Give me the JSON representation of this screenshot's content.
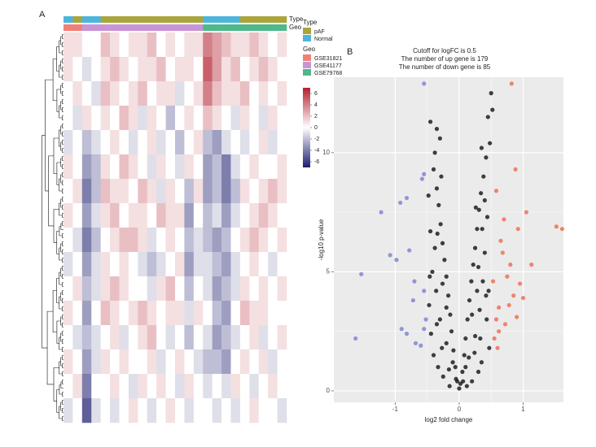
{
  "chart_data": [
    {
      "type": "heatmap",
      "label": "A",
      "annotations": [
        {
          "name": "Type",
          "levels": [
            {
              "name": "pAF",
              "color": "#a9a53b"
            },
            {
              "name": "Normal",
              "color": "#4db5dc"
            }
          ],
          "values": [
            1,
            0,
            1,
            1,
            0,
            0,
            0,
            0,
            0,
            0,
            0,
            0,
            0,
            0,
            0,
            1,
            1,
            1,
            1,
            0,
            0,
            0,
            0,
            0
          ]
        },
        {
          "name": "Geo",
          "levels": [
            {
              "name": "GSE31821",
              "color": "#f08077"
            },
            {
              "name": "GSE41177",
              "color": "#c895d6"
            },
            {
              "name": "GSE79768",
              "color": "#4fb88a"
            }
          ],
          "values": [
            0,
            0,
            1,
            1,
            1,
            1,
            1,
            1,
            1,
            1,
            1,
            1,
            1,
            1,
            1,
            2,
            2,
            2,
            2,
            2,
            2,
            2,
            2,
            2
          ]
        }
      ],
      "values": [
        [
          1,
          1,
          0,
          0,
          2,
          1,
          0,
          1,
          1,
          2,
          0,
          1,
          0,
          1,
          1,
          4,
          3,
          2,
          1,
          1,
          2,
          1,
          0,
          1
        ],
        [
          1,
          0,
          -1,
          0,
          1,
          2,
          1,
          0,
          1,
          1,
          2,
          0,
          1,
          1,
          0,
          5,
          3,
          1,
          2,
          0,
          1,
          2,
          1,
          0
        ],
        [
          0,
          1,
          0,
          -1,
          2,
          1,
          0,
          1,
          2,
          0,
          1,
          1,
          -1,
          0,
          1,
          4,
          2,
          1,
          1,
          2,
          0,
          1,
          0,
          1
        ],
        [
          0,
          -1,
          1,
          0,
          1,
          0,
          2,
          1,
          -1,
          1,
          0,
          -2,
          0,
          1,
          0,
          2,
          1,
          0,
          -1,
          1,
          0,
          -1,
          1,
          0
        ],
        [
          -1,
          0,
          -2,
          -1,
          0,
          1,
          0,
          -1,
          0,
          1,
          -1,
          0,
          -2,
          0,
          1,
          -2,
          -3,
          -1,
          0,
          -1,
          0,
          1,
          -1,
          0
        ],
        [
          1,
          0,
          -3,
          -2,
          1,
          0,
          2,
          1,
          0,
          -1,
          1,
          0,
          -1,
          1,
          0,
          -3,
          -2,
          -4,
          -1,
          0,
          1,
          0,
          0,
          1
        ],
        [
          0,
          1,
          -4,
          -2,
          2,
          1,
          1,
          0,
          2,
          1,
          -1,
          1,
          0,
          -2,
          1,
          -3,
          -2,
          -4,
          -2,
          1,
          0,
          1,
          2,
          1
        ],
        [
          1,
          0,
          -3,
          -1,
          1,
          2,
          0,
          1,
          1,
          0,
          2,
          1,
          1,
          -3,
          0,
          -2,
          -1,
          -3,
          -1,
          0,
          1,
          2,
          1,
          0
        ],
        [
          0,
          -1,
          -4,
          -2,
          0,
          1,
          2,
          2,
          1,
          -1,
          0,
          1,
          0,
          -2,
          -1,
          -2,
          -3,
          -2,
          0,
          1,
          2,
          1,
          0,
          1
        ],
        [
          -1,
          0,
          -3,
          -1,
          1,
          0,
          1,
          0,
          -1,
          -2,
          -1,
          0,
          1,
          -3,
          -1,
          -1,
          -2,
          -3,
          -1,
          0,
          1,
          0,
          -1,
          0
        ],
        [
          0,
          1,
          -2,
          -1,
          1,
          2,
          1,
          0,
          0,
          -1,
          1,
          2,
          0,
          -2,
          0,
          -1,
          -3,
          -2,
          -1,
          1,
          0,
          1,
          0,
          1
        ],
        [
          1,
          0,
          -3,
          0,
          2,
          1,
          0,
          1,
          2,
          1,
          0,
          1,
          1,
          -1,
          1,
          0,
          -2,
          -3,
          0,
          2,
          1,
          1,
          0,
          0
        ],
        [
          0,
          -1,
          -2,
          -1,
          0,
          1,
          -1,
          0,
          1,
          2,
          0,
          -1,
          0,
          -2,
          0,
          -1,
          -3,
          -2,
          -1,
          0,
          1,
          -1,
          0,
          1
        ],
        [
          1,
          0,
          -3,
          -1,
          1,
          0,
          1,
          0,
          0,
          1,
          -1,
          0,
          1,
          0,
          -1,
          -2,
          -2,
          -3,
          0,
          1,
          0,
          1,
          -1,
          0
        ],
        [
          0,
          1,
          -4,
          0,
          0,
          1,
          0,
          -1,
          1,
          0,
          1,
          0,
          -1,
          1,
          0,
          -1,
          0,
          -1,
          1,
          0,
          -1,
          0,
          1,
          0
        ],
        [
          -1,
          0,
          -5,
          -1,
          0,
          -1,
          0,
          1,
          0,
          -1,
          0,
          1,
          0,
          -1,
          0,
          0,
          -1,
          0,
          -1,
          0,
          1,
          0,
          0,
          -1
        ]
      ],
      "colors": [
        "#1d1d6f",
        "#ffffff",
        "#b3202f"
      ],
      "scale_lim": [
        -7,
        7
      ],
      "scale_ticks": [
        6,
        4,
        2,
        0,
        -2,
        -4,
        -6
      ]
    },
    {
      "type": "scatter",
      "label": "B",
      "annotations": [
        "Cutoff for logFC is 0.5",
        "The number of up gene is 179",
        "The number of down gene is 85"
      ],
      "xlabel": "log2 fold change",
      "ylabel": "-log10 p-value",
      "xlim": [
        -1.96,
        1.63
      ],
      "ylim": [
        -0.48,
        13.17
      ],
      "xticks": [
        -1,
        0,
        1
      ],
      "yticks": [
        0,
        5,
        10
      ],
      "grid": true,
      "series": [
        {
          "color": "#111111",
          "x": [
            0,
            0.02,
            -0.03,
            0.05,
            -0.06,
            0.08,
            -0.09,
            0.1,
            -0.12,
            0.13,
            -0.14,
            0.16,
            -0.17,
            0.19,
            -0.2,
            0.22,
            -0.23,
            0.25,
            -0.26,
            0.28,
            -0.29,
            0.31,
            -0.32,
            0.34,
            -0.35,
            0.38,
            -0.4,
            0.42,
            -0.3,
            0.35,
            -0.28,
            0.45,
            0.5,
            0.48,
            -0.38,
            0.44,
            -0.45,
            0.4,
            -0.42,
            0.46,
            -0.47,
            0.43,
            -0.44,
            0.47,
            -0.4,
            0.35,
            -0.33,
            0.3,
            -0.25,
            0.2,
            -0.15,
            0.12,
            -0.2,
            0.25,
            -0.3,
            0.32,
            -0.36,
            0.37,
            -0.38,
            0.3,
            -0.34,
            0.36,
            -0.48,
            0.4,
            -0.2,
            0.2,
            -0.1,
            0.1,
            -0.05,
            0.06,
            -0.45,
            0.52,
            -0.35,
            0.28,
            -0.26,
            0.24,
            -0.27,
            0.15,
            -0.16,
            0.33,
            -0.35,
            0.42,
            -0.46,
            0.26
          ],
          "values": [
            0.1,
            0.3,
            0.4,
            0.8,
            1.0,
            1.5,
            1.7,
            2.2,
            2.5,
            3.0,
            3.2,
            3.8,
            4.0,
            4.6,
            4.8,
            5.3,
            5.5,
            6.0,
            6.2,
            6.8,
            7.0,
            7.6,
            7.8,
            8.3,
            8.5,
            9.0,
            9.3,
            9.8,
            10.6,
            10.2,
            9.0,
            11.5,
            12.5,
            10.4,
            10.0,
            7.3,
            6.7,
            5.8,
            5.0,
            4.2,
            3.6,
            3.0,
            2.4,
            1.8,
            1.5,
            1.2,
            1.0,
            0.8,
            0.6,
            0.4,
            0.2,
            0.2,
            2.0,
            2.3,
            3.0,
            3.4,
            4.2,
            4.6,
            6.0,
            5.2,
            6.6,
            6.8,
            8.2,
            8.0,
            3.5,
            3.2,
            1.2,
            1.0,
            0.5,
            0.4,
            11.3,
            11.8,
            11.0,
            4.2,
            4.5,
            1.6,
            1.8,
            1.4,
            0.9,
            2.2,
            2.8,
            4.0,
            4.8,
            7.7
          ]
        },
        {
          "color": "#7a7fd1",
          "x": [
            -1.53,
            -1.62,
            -1.22,
            -1.08,
            -0.92,
            -0.82,
            -0.58,
            -0.55,
            -0.98,
            -0.78,
            -0.72,
            -0.9,
            -0.68,
            -0.55,
            -0.6,
            -0.55,
            -0.82,
            -0.55,
            -0.7,
            -0.52
          ],
          "values": [
            4.9,
            2.2,
            7.5,
            5.7,
            7.9,
            8.1,
            8.9,
            9.1,
            5.5,
            5.9,
            3.8,
            2.6,
            2.0,
            4.2,
            1.9,
            2.6,
            2.4,
            12.9,
            4.6,
            3.0
          ]
        },
        {
          "color": "#ec6a50",
          "x": [
            0.82,
            1.52,
            1.61,
            0.88,
            1.05,
            0.92,
            1.13,
            0.68,
            0.75,
            0.58,
            0.62,
            0.72,
            0.6,
            0.85,
            0.55,
            0.95,
            0.65,
            0.8,
            1.0,
            0.7,
            0.58,
            0.62,
            0.78,
            0.53,
            0.9
          ],
          "values": [
            12.9,
            6.9,
            6.8,
            9.3,
            7.5,
            6.8,
            5.3,
            5.8,
            4.8,
            8.4,
            3.5,
            2.8,
            1.8,
            4.0,
            2.2,
            4.5,
            6.3,
            5.3,
            3.9,
            7.2,
            3.0,
            2.5,
            3.6,
            4.6,
            3.1
          ]
        }
      ]
    }
  ]
}
